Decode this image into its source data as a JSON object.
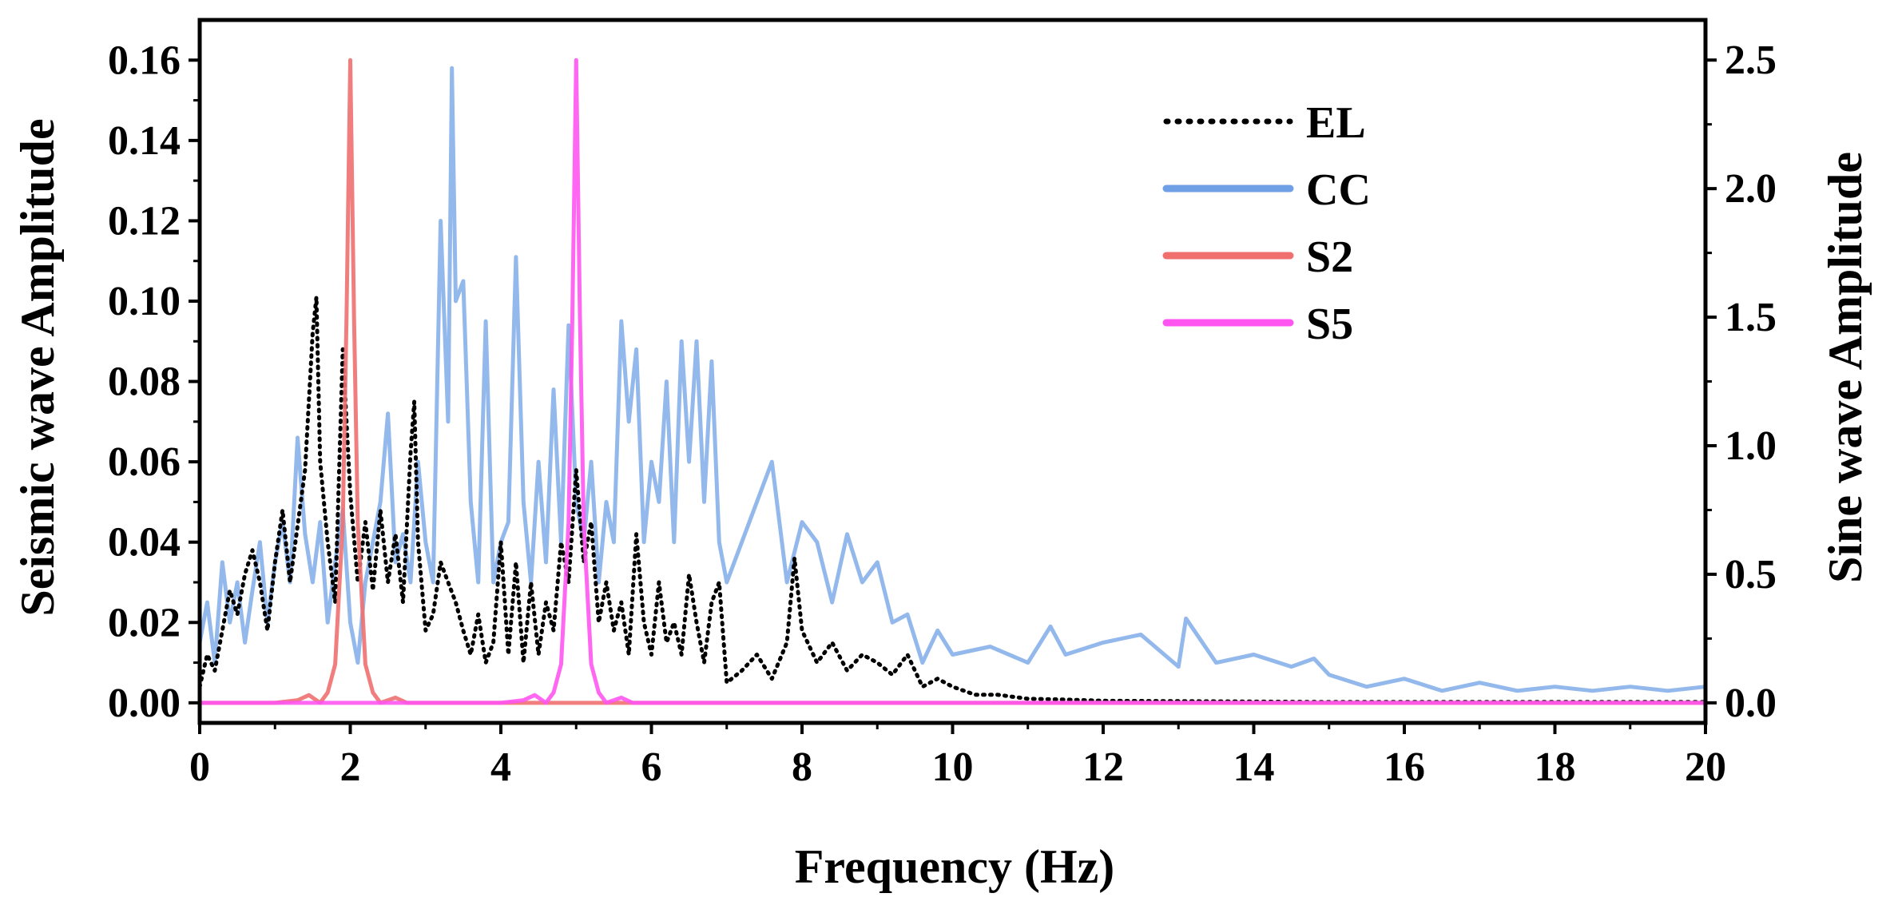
{
  "chart_data": {
    "type": "line",
    "title": "",
    "xlabel": "Frequency (Hz)",
    "ylabel_left": "Seismic wave Amplitude",
    "ylabel_right": "Sine wave Amplitude",
    "xlim": [
      0,
      20
    ],
    "ylim_left": [
      -0.005,
      0.17
    ],
    "ylim_right": [
      -0.0781,
      2.656
    ],
    "xticks": [
      0,
      2,
      4,
      6,
      8,
      10,
      12,
      14,
      16,
      18,
      20
    ],
    "xtick_labels": [
      "0",
      "2",
      "4",
      "6",
      "8",
      "10",
      "12",
      "14",
      "16",
      "18",
      "20"
    ],
    "yticks_left": [
      0,
      0.02,
      0.04,
      0.06,
      0.08,
      0.1,
      0.12,
      0.14,
      0.16
    ],
    "ytick_labels_left": [
      "0.00",
      "0.02",
      "0.04",
      "0.06",
      "0.08",
      "0.10",
      "0.12",
      "0.14",
      "0.16"
    ],
    "yticks_right": [
      0,
      0.5,
      1.0,
      1.5,
      2.0,
      2.5
    ],
    "ytick_labels_right": [
      "0.0",
      "0.5",
      "1.0",
      "1.5",
      "2.0",
      "2.5"
    ],
    "legend_position": "top-center-right",
    "grid": false,
    "series": [
      {
        "name": "EL",
        "axis": "left",
        "color": "#000000",
        "style": "dotted",
        "x": [
          0.0,
          0.1,
          0.2,
          0.3,
          0.4,
          0.5,
          0.6,
          0.7,
          0.8,
          0.9,
          1.0,
          1.1,
          1.2,
          1.3,
          1.4,
          1.5,
          1.55,
          1.6,
          1.7,
          1.8,
          1.9,
          2.0,
          2.1,
          2.2,
          2.3,
          2.4,
          2.5,
          2.6,
          2.7,
          2.8,
          2.85,
          2.9,
          3.0,
          3.1,
          3.2,
          3.3,
          3.4,
          3.5,
          3.6,
          3.7,
          3.8,
          3.9,
          4.0,
          4.1,
          4.2,
          4.3,
          4.4,
          4.5,
          4.6,
          4.7,
          4.8,
          4.9,
          5.0,
          5.1,
          5.2,
          5.3,
          5.4,
          5.5,
          5.6,
          5.7,
          5.8,
          5.9,
          6.0,
          6.1,
          6.2,
          6.3,
          6.4,
          6.5,
          6.6,
          6.7,
          6.8,
          6.9,
          7.0,
          7.2,
          7.4,
          7.6,
          7.8,
          7.9,
          8.0,
          8.2,
          8.4,
          8.6,
          8.8,
          9.0,
          9.2,
          9.4,
          9.6,
          9.8,
          10.0,
          10.3,
          10.6,
          11.0,
          11.5,
          12.0,
          13.0,
          14.0,
          15.0,
          16.0,
          17.0,
          18.0,
          19.0,
          20.0
        ],
        "values": [
          0.004,
          0.012,
          0.008,
          0.018,
          0.028,
          0.022,
          0.032,
          0.038,
          0.03,
          0.018,
          0.035,
          0.048,
          0.03,
          0.044,
          0.058,
          0.092,
          0.101,
          0.06,
          0.04,
          0.025,
          0.088,
          0.052,
          0.03,
          0.045,
          0.028,
          0.048,
          0.03,
          0.042,
          0.025,
          0.062,
          0.075,
          0.04,
          0.018,
          0.022,
          0.035,
          0.03,
          0.025,
          0.018,
          0.012,
          0.022,
          0.01,
          0.015,
          0.04,
          0.012,
          0.035,
          0.01,
          0.03,
          0.012,
          0.025,
          0.018,
          0.04,
          0.03,
          0.058,
          0.035,
          0.045,
          0.02,
          0.03,
          0.018,
          0.025,
          0.012,
          0.042,
          0.02,
          0.012,
          0.03,
          0.015,
          0.02,
          0.012,
          0.032,
          0.02,
          0.01,
          0.025,
          0.03,
          0.005,
          0.008,
          0.012,
          0.006,
          0.015,
          0.036,
          0.018,
          0.01,
          0.015,
          0.008,
          0.012,
          0.01,
          0.007,
          0.012,
          0.004,
          0.006,
          0.004,
          0.002,
          0.002,
          0.001,
          0.0008,
          0.0005,
          0.0004,
          0.0003,
          0.0002,
          0.0002,
          0.0002,
          0.0002,
          0.0002,
          0.0002
        ]
      },
      {
        "name": "CC",
        "axis": "left",
        "color": "#6FA0E6",
        "style": "solid",
        "x": [
          0.0,
          0.1,
          0.2,
          0.3,
          0.4,
          0.5,
          0.6,
          0.7,
          0.8,
          0.9,
          1.0,
          1.1,
          1.2,
          1.3,
          1.4,
          1.5,
          1.6,
          1.7,
          1.8,
          1.9,
          2.0,
          2.1,
          2.2,
          2.3,
          2.4,
          2.5,
          2.6,
          2.7,
          2.8,
          2.9,
          3.0,
          3.1,
          3.2,
          3.3,
          3.35,
          3.4,
          3.5,
          3.6,
          3.7,
          3.8,
          3.9,
          4.0,
          4.1,
          4.2,
          4.3,
          4.4,
          4.5,
          4.6,
          4.7,
          4.8,
          4.9,
          5.0,
          5.1,
          5.2,
          5.3,
          5.4,
          5.5,
          5.6,
          5.7,
          5.8,
          5.9,
          6.0,
          6.1,
          6.2,
          6.3,
          6.4,
          6.5,
          6.6,
          6.7,
          6.8,
          6.9,
          7.0,
          7.2,
          7.4,
          7.6,
          7.8,
          8.0,
          8.2,
          8.4,
          8.6,
          8.8,
          9.0,
          9.2,
          9.4,
          9.6,
          9.8,
          10.0,
          10.5,
          11.0,
          11.3,
          11.5,
          12.0,
          12.5,
          13.0,
          13.1,
          13.5,
          14.0,
          14.5,
          14.8,
          15.0,
          15.5,
          16.0,
          16.5,
          17.0,
          17.5,
          18.0,
          18.5,
          19.0,
          19.5,
          20.0
        ],
        "values": [
          0.015,
          0.025,
          0.01,
          0.035,
          0.02,
          0.03,
          0.015,
          0.028,
          0.04,
          0.02,
          0.035,
          0.045,
          0.03,
          0.066,
          0.042,
          0.03,
          0.045,
          0.02,
          0.035,
          0.048,
          0.02,
          0.01,
          0.03,
          0.04,
          0.05,
          0.072,
          0.035,
          0.042,
          0.03,
          0.06,
          0.04,
          0.03,
          0.12,
          0.07,
          0.158,
          0.1,
          0.105,
          0.05,
          0.03,
          0.095,
          0.03,
          0.04,
          0.045,
          0.111,
          0.05,
          0.03,
          0.06,
          0.035,
          0.078,
          0.04,
          0.094,
          0.05,
          0.04,
          0.06,
          0.03,
          0.05,
          0.04,
          0.095,
          0.07,
          0.088,
          0.04,
          0.06,
          0.05,
          0.08,
          0.04,
          0.09,
          0.06,
          0.09,
          0.05,
          0.085,
          0.04,
          0.03,
          0.04,
          0.05,
          0.06,
          0.03,
          0.045,
          0.04,
          0.025,
          0.042,
          0.03,
          0.035,
          0.02,
          0.022,
          0.01,
          0.018,
          0.012,
          0.014,
          0.01,
          0.019,
          0.012,
          0.015,
          0.017,
          0.009,
          0.021,
          0.01,
          0.012,
          0.009,
          0.011,
          0.007,
          0.004,
          0.006,
          0.003,
          0.005,
          0.003,
          0.004,
          0.003,
          0.004,
          0.003,
          0.004
        ]
      },
      {
        "name": "S2",
        "axis": "right",
        "color": "#F07070",
        "style": "solid",
        "x": [
          0.0,
          1.0,
          1.3,
          1.45,
          1.6,
          1.7,
          1.8,
          1.9,
          1.95,
          2.0,
          2.05,
          2.1,
          2.2,
          2.3,
          2.4,
          2.6,
          2.75,
          3.0,
          4.0,
          20.0
        ],
        "values": [
          0.0,
          0.0,
          0.01,
          0.03,
          0.0,
          0.04,
          0.15,
          0.7,
          1.5,
          2.5,
          1.5,
          0.7,
          0.15,
          0.04,
          0.0,
          0.02,
          0.0,
          0.0,
          0.0,
          0.0
        ]
      },
      {
        "name": "S5",
        "axis": "right",
        "color": "#FF55F0",
        "style": "solid",
        "x": [
          0.0,
          4.0,
          4.3,
          4.45,
          4.6,
          4.7,
          4.8,
          4.9,
          4.95,
          5.0,
          5.05,
          5.1,
          5.2,
          5.3,
          5.4,
          5.6,
          5.75,
          6.0,
          20.0
        ],
        "values": [
          0.0,
          0.0,
          0.01,
          0.03,
          0.0,
          0.04,
          0.15,
          0.7,
          1.5,
          2.5,
          1.5,
          0.7,
          0.15,
          0.04,
          0.0,
          0.02,
          0.0,
          0.0,
          0.0
        ]
      }
    ]
  }
}
